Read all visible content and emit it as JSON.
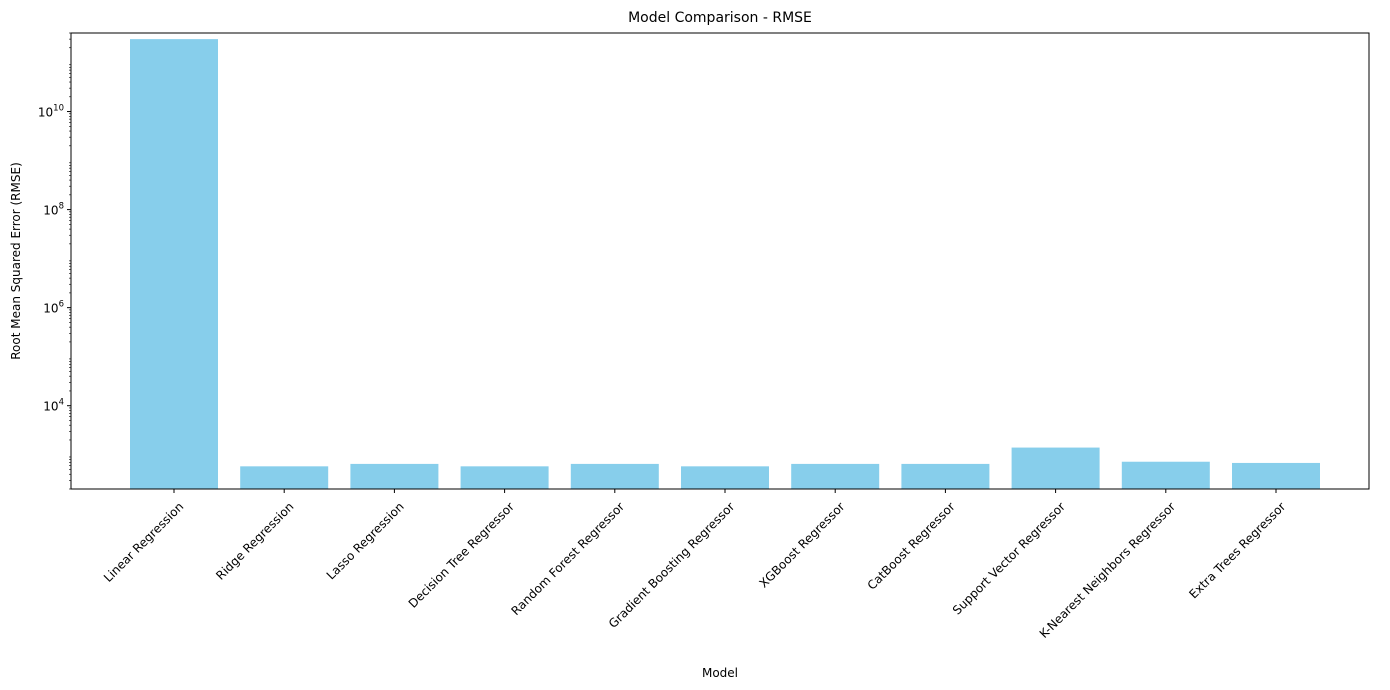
{
  "chart_data": {
    "type": "bar",
    "title": "Model Comparison - RMSE",
    "xlabel": "Model",
    "ylabel": "Root Mean Squared Error (RMSE)",
    "yscale": "log",
    "ylim": [
      200,
      400000000000
    ],
    "yticks": [
      10000,
      1000000,
      100000000,
      10000000000
    ],
    "ytick_labels": [
      {
        "base": "10",
        "exp": "4"
      },
      {
        "base": "10",
        "exp": "6"
      },
      {
        "base": "10",
        "exp": "8"
      },
      {
        "base": "10",
        "exp": "10"
      }
    ],
    "grid": false,
    "bar_color": "#87ceeb",
    "categories": [
      "Linear Regression",
      "Ridge Regression",
      "Lasso Regression",
      "Decision Tree Regressor",
      "Random Forest Regressor",
      "Gradient Boosting Regressor",
      "XGBoost Regressor",
      "CatBoost Regressor",
      "Support Vector Regressor",
      "K-Nearest Neighbors Regressor",
      "Extra Trees Regressor"
    ],
    "values": [
      300000000000,
      580,
      650,
      580,
      650,
      580,
      650,
      650,
      1400,
      720,
      680
    ]
  }
}
